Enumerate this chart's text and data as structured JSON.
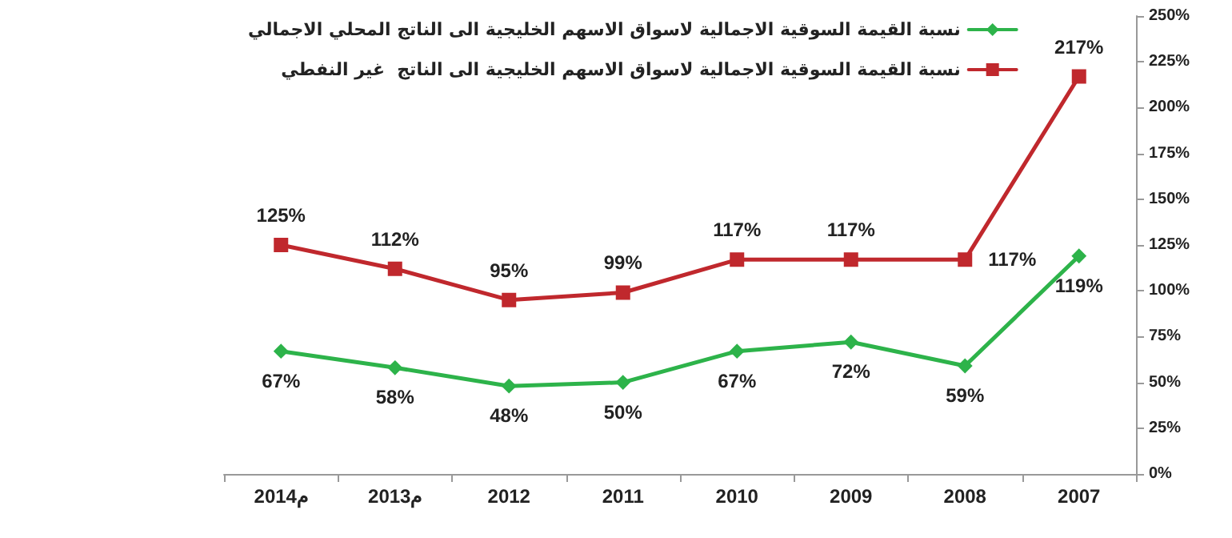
{
  "chart_data": {
    "type": "line",
    "categories": [
      "2014م",
      "2013م",
      "2012",
      "2011",
      "2010",
      "2009",
      "2008",
      "2007"
    ],
    "series": [
      {
        "name": "نسبة القيمة السوقية الاجمالية لاسواق الاسهم الخليجية الى الناتج المحلي الاجمالي",
        "color": "#2db34a",
        "marker": "diamond",
        "values": [
          67,
          58,
          48,
          50,
          67,
          72,
          59,
          119
        ],
        "value_labels": [
          "67%",
          "58%",
          "48%",
          "50%",
          "67%",
          "72%",
          "59%",
          "119%"
        ]
      },
      {
        "name": "نسبة القيمة السوقية الاجمالية لاسواق الاسهم الخليجية الى الناتج  غير النفطي",
        "color": "#c0282d",
        "marker": "square",
        "values": [
          125,
          112,
          95,
          99,
          117,
          117,
          117,
          217
        ],
        "value_labels": [
          "125%",
          "112%",
          "95%",
          "99%",
          "117%",
          "117%",
          "117%",
          "217%"
        ]
      }
    ],
    "ylim": [
      0,
      250
    ],
    "yticks": [
      {
        "value": 0,
        "label": "0%"
      },
      {
        "value": 25,
        "label": "25%"
      },
      {
        "value": 50,
        "label": "50%"
      },
      {
        "value": 75,
        "label": "75%"
      },
      {
        "value": 100,
        "label": "100%"
      },
      {
        "value": 125,
        "label": "125%"
      },
      {
        "value": 150,
        "label": "150%"
      },
      {
        "value": 175,
        "label": "175%"
      },
      {
        "value": 200,
        "label": "200%"
      },
      {
        "value": 225,
        "label": "225%"
      },
      {
        "value": 250,
        "label": "250%"
      }
    ],
    "grid": false,
    "legend": "top",
    "line_style": "solid"
  }
}
